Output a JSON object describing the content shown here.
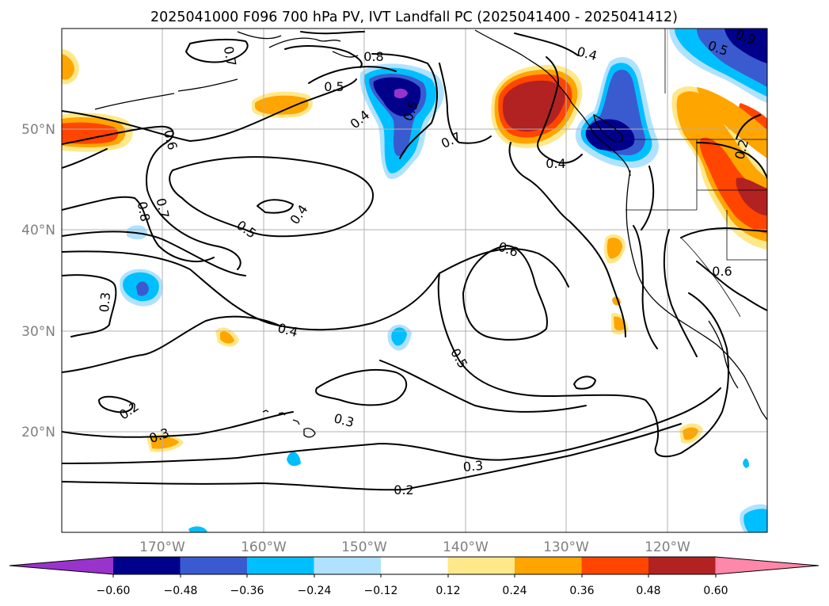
{
  "title": "2025041000 F096 700 hPa PV, IVT Landfall PC (2025041400 - 2025041412)",
  "map": {
    "lat_labels": [
      "50°N",
      "40°N",
      "30°N",
      "20°N"
    ],
    "lon_labels": [
      "170°W",
      "160°W",
      "150°W",
      "140°W",
      "130°W",
      "120°W"
    ]
  },
  "contour_labels": [
    "0.8",
    "0.4",
    "0.7",
    "0.5",
    "0.4",
    "0.7",
    "0.6",
    "0.4",
    "0.5",
    "0.2",
    "0.6",
    "0.4",
    "0.8",
    "0.7",
    "0.5",
    "0.6",
    "0.3",
    "0.4",
    "0.5",
    "0.3",
    "0.2",
    "0.3",
    "0.3",
    "0.2",
    "0.9",
    "0.5"
  ],
  "colorbar": {
    "tick_labels": [
      "−0.60",
      "−0.48",
      "−0.36",
      "−0.24",
      "−0.12",
      "0.12",
      "0.24",
      "0.36",
      "0.48",
      "0.60"
    ],
    "colors": [
      "#9933cc",
      "#00008b",
      "#3a5bd0",
      "#00bfff",
      "#b0e2ff",
      "#ffffff",
      "#ffe88a",
      "#ffa500",
      "#ff4500",
      "#b22222",
      "#ff88aa"
    ]
  },
  "colors": {
    "grid": "#b0b0b0",
    "contour": "#000000",
    "axis_label": "#808080"
  }
}
